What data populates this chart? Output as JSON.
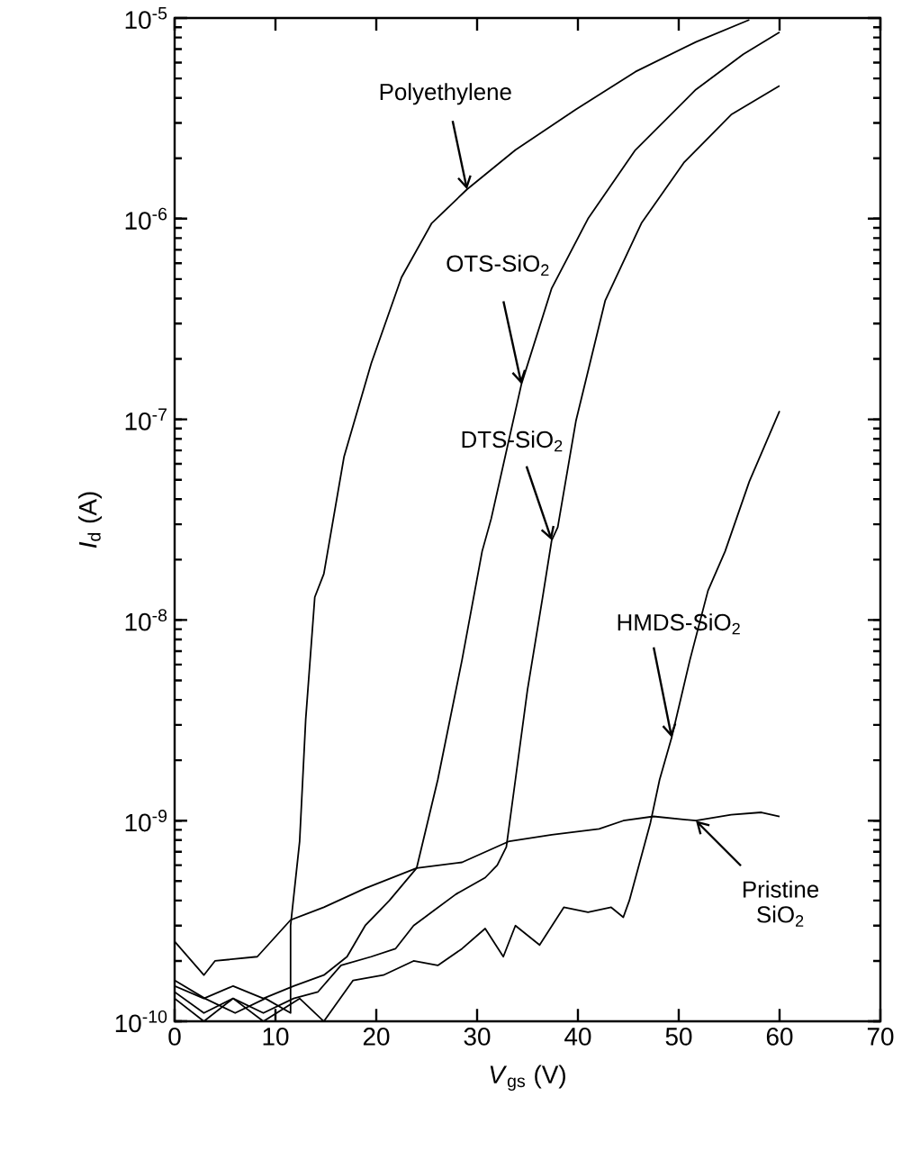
{
  "chart_data": {
    "type": "line",
    "xlabel": "*V*$_{gs}$ (V)",
    "ylabel": "*I*$_{d}$ (A)",
    "log": "y",
    "xlim": [
      0,
      70
    ],
    "xticks": [
      0,
      10,
      20,
      30,
      40,
      50,
      60,
      70
    ],
    "ylim": [
      1e-10,
      1e-05
    ],
    "yticks": [
      {
        "value": 1e-10,
        "label": "10$^{-10}$"
      },
      {
        "value": 1e-09,
        "label": "10$^{-9}$"
      },
      {
        "value": 1e-08,
        "label": "10$^{-8}$"
      },
      {
        "value": 1e-07,
        "label": "10$^{-7}$"
      },
      {
        "value": 1e-06,
        "label": "10$^{-6}$"
      },
      {
        "value": 1e-05,
        "label": "10$^{-5}$"
      }
    ],
    "series": [
      {
        "name": "Polyethylene",
        "color": "#000000",
        "x": [
          0,
          3,
          6,
          9,
          11.5,
          11.5,
          12.4,
          13,
          13.9,
          14.8,
          16.8,
          19.5,
          22.5,
          25.5,
          29,
          33.8,
          39.8,
          45.7,
          51.7,
          57
        ],
        "values": [
          1.6e-10,
          1.3e-10,
          1.1e-10,
          1.3e-10,
          1.1e-10,
          3e-10,
          7.9e-10,
          3.2e-09,
          1.3e-08,
          1.7e-08,
          6.5e-08,
          1.9e-07,
          5.1e-07,
          9.5e-07,
          1.4e-06,
          2.2e-06,
          3.5e-06,
          5.4e-06,
          7.6e-06,
          9.8e-06
        ]
      },
      {
        "name": "OTS-SiO$_{2}$",
        "color": "#000000",
        "x": [
          0,
          2.9,
          5.8,
          8.8,
          11.8,
          14.8,
          17.1,
          18.9,
          21.3,
          24,
          26.1,
          28.5,
          30.5,
          31.4,
          34.4,
          37.4,
          41,
          45.7,
          51.7,
          56.4,
          60
        ],
        "values": [
          1.5e-10,
          1.3e-10,
          1.5e-10,
          1.3e-10,
          1.5e-10,
          1.7e-10,
          2.1e-10,
          3e-10,
          4e-10,
          5.8e-10,
          1.6e-09,
          6.3e-09,
          2.2e-08,
          3.2e-08,
          1.5e-07,
          4.5e-07,
          1e-06,
          2.2e-06,
          4.4e-06,
          6.6e-06,
          8.5e-06
        ]
      },
      {
        "name": "DTS-SiO$_{2}$",
        "color": "#000000",
        "x": [
          0,
          2.9,
          5.8,
          8.8,
          11.8,
          14.2,
          16.5,
          19.5,
          21.9,
          23.7,
          25.5,
          27.9,
          30.8,
          32,
          32.9,
          33.8,
          35,
          36.5,
          37.4,
          38,
          39.8,
          42.7,
          46.3,
          50.5,
          55.2,
          60
        ],
        "values": [
          1.4e-10,
          1.1e-10,
          1.3e-10,
          1.1e-10,
          1.3e-10,
          1.4e-10,
          1.9e-10,
          2.1e-10,
          2.3e-10,
          3e-10,
          3.5e-10,
          4.3e-10,
          5.2e-10,
          6e-10,
          7.4e-10,
          1.6e-09,
          4.5e-09,
          1.3e-08,
          2.5e-08,
          2.9e-08,
          9.8e-08,
          3.9e-07,
          9.5e-07,
          1.9e-06,
          3.3e-06,
          4.6e-06
        ]
      },
      {
        "name": "HMDS-SiO$_{2}$",
        "color": "#000000",
        "x": [
          0,
          2.9,
          5.8,
          8.8,
          12.4,
          14.8,
          17.7,
          20.7,
          23.7,
          26.1,
          28.5,
          30.8,
          32.6,
          33.8,
          36.2,
          38.6,
          41,
          43.3,
          44.5,
          45.1,
          47.2,
          48.1,
          49.3,
          51.1,
          52.9,
          54.6,
          57,
          60
        ],
        "values": [
          1.3e-10,
          1e-10,
          1.3e-10,
          1e-10,
          1.3e-10,
          1e-10,
          1.6e-10,
          1.7e-10,
          2e-10,
          1.9e-10,
          2.3e-10,
          2.9e-10,
          2.1e-10,
          3e-10,
          2.4e-10,
          3.7e-10,
          3.5e-10,
          3.7e-10,
          3.3e-10,
          4e-10,
          9.8e-10,
          1.6e-09,
          2.6e-09,
          6.3e-09,
          1.4e-08,
          2.2e-08,
          4.9e-08,
          1.1e-07
        ]
      },
      {
        "name": "Pristine SiO$_{2}$",
        "color": "#000000",
        "x": [
          0,
          2.9,
          4,
          8.2,
          11.5,
          14.8,
          18.9,
          24,
          28.5,
          33.2,
          37.4,
          42.1,
          44.5,
          47.5,
          51.7,
          55.2,
          58.2,
          60
        ],
        "values": [
          2.5e-10,
          1.7e-10,
          2e-10,
          2.1e-10,
          3.2e-10,
          3.7e-10,
          4.6e-10,
          5.8e-10,
          6.2e-10,
          7.9e-10,
          8.5e-10,
          9.1e-10,
          1e-09,
          1.05e-09,
          1e-09,
          1.07e-09,
          1.1e-09,
          1.05e-09
        ]
      }
    ]
  }
}
